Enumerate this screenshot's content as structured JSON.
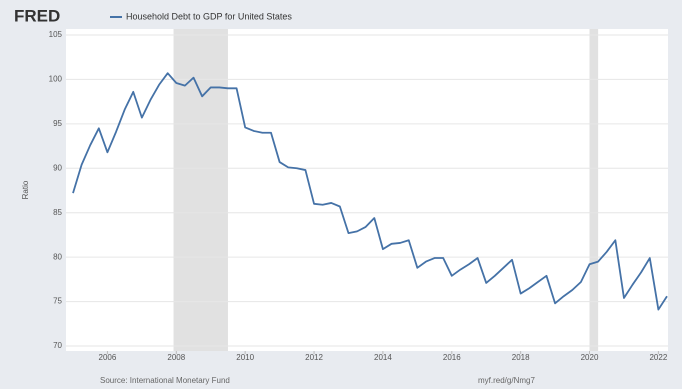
{
  "brand": "FRED",
  "chart_data": {
    "type": "line",
    "title": "Household Debt to GDP for United States",
    "y_label": "Ratio",
    "x": [
      2005,
      2005.25,
      2005.5,
      2005.75,
      2006,
      2006.25,
      2006.5,
      2006.75,
      2007,
      2007.25,
      2007.5,
      2007.75,
      2008,
      2008.25,
      2008.5,
      2008.75,
      2009,
      2009.25,
      2009.5,
      2009.75,
      2010,
      2010.25,
      2010.5,
      2010.75,
      2011,
      2011.25,
      2011.5,
      2011.75,
      2012,
      2012.25,
      2012.5,
      2012.75,
      2013,
      2013.25,
      2013.5,
      2013.75,
      2014,
      2014.25,
      2014.5,
      2014.75,
      2015,
      2015.25,
      2015.5,
      2015.75,
      2016,
      2016.25,
      2016.5,
      2016.75,
      2017,
      2017.25,
      2017.5,
      2017.75,
      2018,
      2018.25,
      2018.5,
      2018.75,
      2019,
      2019.25,
      2019.5,
      2019.75,
      2020,
      2020.25,
      2020.5,
      2020.75,
      2021,
      2021.25,
      2021.5,
      2021.75,
      2022,
      2022.25
    ],
    "series": [
      {
        "name": "Household Debt to GDP for United States",
        "color": "#4572a7",
        "values": [
          87.2,
          90.4,
          92.6,
          94.5,
          91.8,
          94.1,
          96.6,
          98.6,
          95.7,
          97.7,
          99.4,
          100.7,
          99.6,
          99.3,
          100.2,
          98.1,
          99.1,
          99.1,
          99.0,
          99.0,
          94.6,
          94.2,
          94.0,
          94.0,
          90.7,
          90.1,
          90.0,
          89.8,
          86.0,
          85.9,
          86.1,
          85.7,
          82.7,
          82.9,
          83.4,
          84.4,
          80.9,
          81.5,
          81.6,
          81.9,
          78.8,
          79.5,
          79.9,
          79.9,
          77.9,
          78.6,
          79.2,
          79.9,
          77.1,
          77.9,
          78.8,
          79.7,
          75.9,
          76.5,
          77.2,
          77.9,
          74.8,
          75.6,
          76.3,
          77.2,
          79.2,
          79.5,
          80.6,
          81.9,
          75.4,
          76.9,
          78.3,
          79.9,
          74.1,
          75.6
        ]
      }
    ],
    "recessions": [
      [
        2007.92,
        2009.5
      ],
      [
        2020.0,
        2020.25
      ]
    ],
    "recession_color": "#e1e1e1",
    "xlim": [
      2005,
      2022.25
    ],
    "xticks": [
      2006,
      2008,
      2010,
      2012,
      2014,
      2016,
      2018,
      2020,
      2022
    ],
    "ylim": [
      70,
      105
    ],
    "yticks": [
      70,
      75,
      80,
      85,
      90,
      95,
      100,
      105
    ],
    "grid": true
  },
  "footer": {
    "source": "Source: International Monetary Fund",
    "link": "myf.red/g/Nmg7"
  }
}
